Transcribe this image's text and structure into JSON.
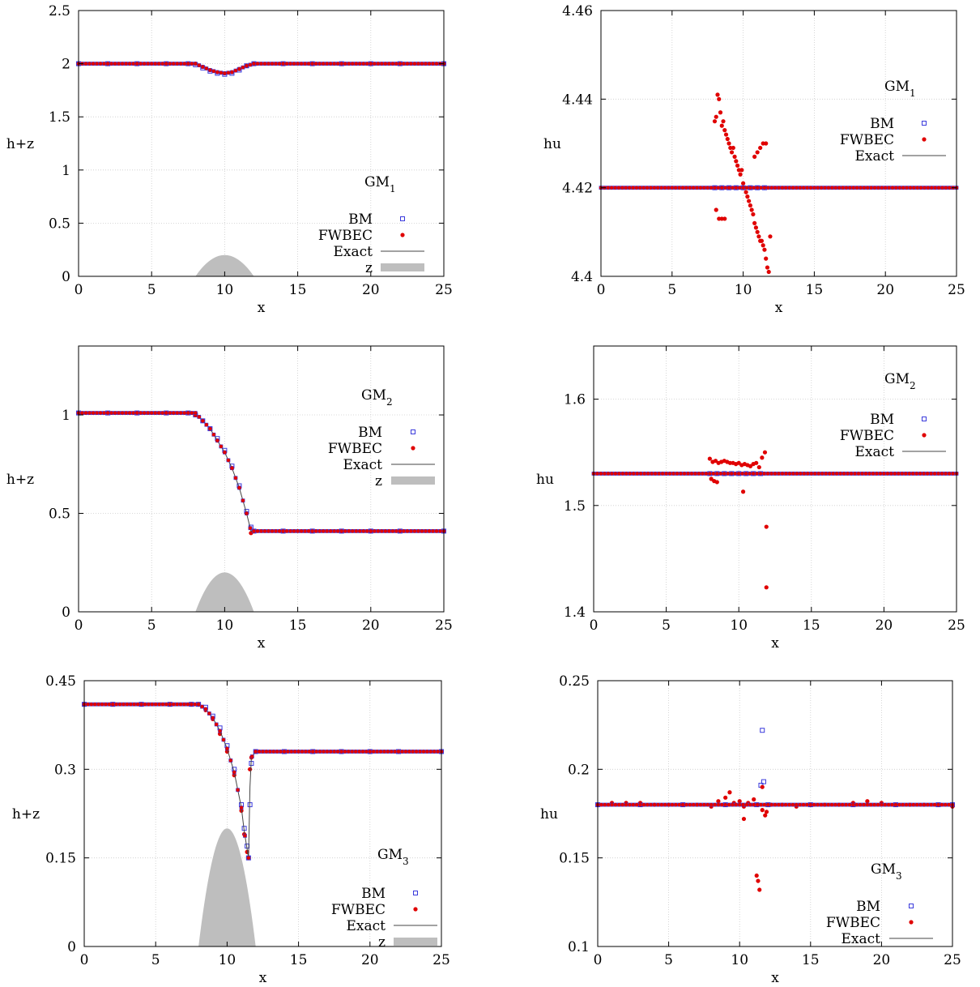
{
  "figure": {
    "background": "#ffffff"
  },
  "colors": {
    "bm": "#3a3adc",
    "fwbec": "#e00000",
    "exact": "#444444",
    "z": "#bebebe",
    "grid": "#cccccc"
  },
  "chart_data": [
    {
      "id": "p1",
      "type": "scatter",
      "title": "GM",
      "title_sub": "1",
      "xlabel": "x",
      "ylabel": "h+z",
      "xlim": [
        0,
        25
      ],
      "ylim": [
        0,
        2.5
      ],
      "xticks": [
        0,
        5,
        10,
        15,
        20,
        25
      ],
      "yticks": [
        0,
        0.5,
        1,
        1.5,
        2,
        2.5
      ],
      "ytick_labels": [
        "0",
        "0.5",
        "1",
        "1.5",
        "2",
        "2.5"
      ],
      "grid": true,
      "legend": [
        "BM",
        "FWBEC",
        "Exact",
        "z"
      ],
      "legend_position": "right",
      "series": [
        {
          "name": "BM",
          "marker": "open-square",
          "x": [
            0,
            2,
            4,
            6,
            7.5,
            8,
            8.5,
            9,
            9.5,
            10,
            10.5,
            11,
            11.5,
            12,
            14,
            16,
            18,
            20,
            22,
            25
          ],
          "y": [
            2.0,
            2.0,
            2.0,
            2.0,
            2.0,
            1.99,
            1.96,
            1.93,
            1.91,
            1.9,
            1.91,
            1.94,
            1.98,
            2.0,
            2.0,
            2.0,
            2.0,
            2.0,
            2.0,
            2.0
          ]
        },
        {
          "name": "FWBEC",
          "marker": "dot",
          "x": [
            0,
            2,
            4,
            6,
            7.5,
            8,
            8.5,
            9,
            9.5,
            10,
            10.5,
            11,
            11.5,
            12,
            14,
            16,
            18,
            20,
            22,
            25
          ],
          "y": [
            2.0,
            2.0,
            2.0,
            2.0,
            2.0,
            2.0,
            1.97,
            1.94,
            1.92,
            1.91,
            1.92,
            1.95,
            1.98,
            2.0,
            2.0,
            2.0,
            2.0,
            2.0,
            2.0,
            2.0
          ]
        },
        {
          "name": "Exact",
          "marker": "line",
          "x": [
            0,
            8,
            8.5,
            9,
            9.5,
            10,
            10.5,
            11,
            11.5,
            12,
            25
          ],
          "y": [
            2.0,
            2.0,
            1.97,
            1.94,
            1.92,
            1.91,
            1.92,
            1.95,
            1.98,
            2.0,
            2.0
          ]
        }
      ],
      "z": {
        "name": "z",
        "x_range": [
          8,
          12
        ],
        "peak": 0.2,
        "center": 10
      }
    },
    {
      "id": "p2",
      "type": "scatter",
      "title": "GM",
      "title_sub": "1",
      "xlabel": "x",
      "ylabel": "hu",
      "xlim": [
        0,
        25
      ],
      "ylim": [
        4.4,
        4.46
      ],
      "xticks": [
        0,
        5,
        10,
        15,
        20,
        25
      ],
      "yticks": [
        4.4,
        4.42,
        4.44,
        4.46
      ],
      "ytick_labels": [
        "4.4",
        "4.42",
        "4.44",
        "4.46"
      ],
      "grid": true,
      "legend": [
        "BM",
        "FWBEC",
        "Exact"
      ],
      "legend_position": "top-right",
      "series": [
        {
          "name": "BM",
          "marker": "open-square",
          "x": [
            8.0,
            8.5,
            9.0,
            9.5,
            10.0,
            10.5,
            11.0,
            11.5
          ],
          "y": [
            4.42,
            4.42,
            4.42,
            4.42,
            4.42,
            4.42,
            4.42,
            4.42
          ]
        },
        {
          "name": "FWBEC",
          "marker": "dot",
          "x": [
            8.0,
            8.1,
            8.2,
            8.3,
            8.4,
            8.5,
            8.6,
            8.7,
            8.8,
            8.9,
            9.0,
            9.1,
            9.2,
            9.3,
            9.4,
            9.5,
            9.6,
            9.7,
            9.8,
            9.9,
            10.0,
            10.1,
            10.2,
            10.3,
            10.4,
            10.5,
            10.6,
            10.7,
            10.8,
            10.9,
            11.0,
            11.1,
            11.2,
            11.3,
            11.4,
            11.5,
            11.6,
            11.7,
            11.8,
            11.9,
            8.1,
            8.3,
            8.5,
            8.7,
            10.8,
            11.0,
            11.2,
            11.4,
            11.6
          ],
          "y": [
            4.435,
            4.436,
            4.441,
            4.44,
            4.437,
            4.434,
            4.435,
            4.433,
            4.432,
            4.431,
            4.43,
            4.429,
            4.428,
            4.429,
            4.427,
            4.426,
            4.425,
            4.424,
            4.423,
            4.424,
            4.421,
            4.42,
            4.419,
            4.418,
            4.417,
            4.416,
            4.415,
            4.414,
            4.412,
            4.411,
            4.41,
            4.409,
            4.408,
            4.408,
            4.407,
            4.406,
            4.404,
            4.402,
            4.401,
            4.409,
            4.415,
            4.413,
            4.413,
            4.413,
            4.427,
            4.428,
            4.429,
            4.43,
            4.43
          ]
        },
        {
          "name": "Exact",
          "marker": "line",
          "x": [
            0,
            25
          ],
          "y": [
            4.42,
            4.42
          ]
        }
      ]
    },
    {
      "id": "p3",
      "type": "scatter",
      "title": "GM",
      "title_sub": "2",
      "xlabel": "x",
      "ylabel": "h+z",
      "xlim": [
        0,
        25
      ],
      "ylim": [
        0,
        1.35
      ],
      "xticks": [
        0,
        5,
        10,
        15,
        20,
        25
      ],
      "yticks": [
        0,
        0.5,
        1
      ],
      "ytick_labels": [
        "0",
        "0.5",
        "1"
      ],
      "grid": true,
      "legend": [
        "BM",
        "FWBEC",
        "Exact",
        "z"
      ],
      "legend_position": "top-right",
      "series": [
        {
          "name": "BM",
          "marker": "open-square",
          "x": [
            0,
            2,
            4,
            6,
            7.5,
            8,
            8.5,
            9,
            9.5,
            10,
            10.5,
            11,
            11.5,
            11.8,
            12,
            14,
            16,
            18,
            20,
            22,
            25
          ],
          "y": [
            1.01,
            1.01,
            1.01,
            1.01,
            1.01,
            1.0,
            0.97,
            0.93,
            0.88,
            0.82,
            0.74,
            0.64,
            0.51,
            0.43,
            0.41,
            0.41,
            0.41,
            0.41,
            0.41,
            0.41,
            0.41
          ]
        },
        {
          "name": "FWBEC",
          "marker": "dot",
          "x": [
            0,
            2,
            4,
            6,
            7.5,
            8,
            8.5,
            9,
            9.5,
            10,
            10.5,
            11,
            11.5,
            11.8,
            12,
            14,
            16,
            18,
            20,
            22,
            25
          ],
          "y": [
            1.01,
            1.01,
            1.01,
            1.01,
            1.01,
            1.0,
            0.97,
            0.93,
            0.87,
            0.81,
            0.73,
            0.63,
            0.5,
            0.4,
            0.41,
            0.41,
            0.41,
            0.41,
            0.41,
            0.41,
            0.41
          ]
        },
        {
          "name": "Exact",
          "marker": "line",
          "x": [
            0,
            8,
            8.5,
            9,
            9.5,
            10,
            10.5,
            11,
            11.5,
            11.8,
            25
          ],
          "y": [
            1.01,
            1.01,
            0.97,
            0.93,
            0.87,
            0.81,
            0.73,
            0.63,
            0.5,
            0.41,
            0.41
          ]
        }
      ],
      "z": {
        "name": "z",
        "x_range": [
          8,
          12
        ],
        "peak": 0.2,
        "center": 10
      }
    },
    {
      "id": "p4",
      "type": "scatter",
      "title": "GM",
      "title_sub": "2",
      "xlabel": "x",
      "ylabel": "hu",
      "xlim": [
        0,
        25
      ],
      "ylim": [
        1.4,
        1.65
      ],
      "xticks": [
        0,
        5,
        10,
        15,
        20,
        25
      ],
      "yticks": [
        1.4,
        1.5,
        1.6
      ],
      "ytick_labels": [
        "1.4",
        "1.5",
        "1.6"
      ],
      "grid": true,
      "legend": [
        "BM",
        "FWBEC",
        "Exact"
      ],
      "legend_position": "top-right",
      "series": [
        {
          "name": "BM",
          "marker": "open-square",
          "x": [
            8,
            8.5,
            9,
            9.5,
            10,
            10.5,
            11,
            11.5
          ],
          "y": [
            1.53,
            1.53,
            1.53,
            1.53,
            1.53,
            1.53,
            1.53,
            1.53
          ]
        },
        {
          "name": "FWBEC",
          "marker": "dot",
          "x": [
            8.0,
            8.2,
            8.4,
            8.6,
            8.8,
            9.0,
            9.2,
            9.4,
            9.6,
            9.8,
            10.0,
            10.2,
            10.4,
            10.6,
            10.8,
            11.0,
            11.2,
            11.4,
            11.6,
            11.8,
            8.1,
            8.3,
            8.5,
            10.3,
            11.9,
            11.9
          ],
          "y": [
            1.544,
            1.541,
            1.542,
            1.54,
            1.541,
            1.542,
            1.541,
            1.54,
            1.54,
            1.539,
            1.54,
            1.538,
            1.539,
            1.538,
            1.537,
            1.539,
            1.54,
            1.536,
            1.545,
            1.55,
            1.525,
            1.523,
            1.522,
            1.513,
            1.48,
            1.423
          ]
        },
        {
          "name": "Exact",
          "marker": "line",
          "x": [
            0,
            25
          ],
          "y": [
            1.53,
            1.53
          ]
        }
      ]
    },
    {
      "id": "p5",
      "type": "scatter",
      "title": "GM",
      "title_sub": "3",
      "xlabel": "x",
      "ylabel": "h+z",
      "xlim": [
        0,
        25
      ],
      "ylim": [
        0,
        0.45
      ],
      "xticks": [
        0,
        5,
        10,
        15,
        20,
        25
      ],
      "yticks": [
        0,
        0.15,
        0.3,
        0.45
      ],
      "ytick_labels": [
        "0",
        "0.15",
        "0.3",
        "0.45"
      ],
      "grid": true,
      "legend": [
        "BM",
        "FWBEC",
        "Exact",
        "z"
      ],
      "legend_position": "bottom-right",
      "series": [
        {
          "name": "BM",
          "marker": "open-square",
          "x": [
            0,
            2,
            4,
            6,
            7.5,
            8,
            8.5,
            9,
            9.5,
            10,
            10.5,
            11,
            11.2,
            11.4,
            11.5,
            11.6,
            11.7,
            12,
            14,
            16,
            18,
            20,
            22,
            25
          ],
          "y": [
            0.41,
            0.41,
            0.41,
            0.41,
            0.41,
            0.41,
            0.405,
            0.39,
            0.37,
            0.34,
            0.3,
            0.24,
            0.2,
            0.17,
            0.15,
            0.24,
            0.31,
            0.33,
            0.33,
            0.33,
            0.33,
            0.33,
            0.33,
            0.33
          ]
        },
        {
          "name": "FWBEC",
          "marker": "dot",
          "x": [
            0,
            2,
            4,
            6,
            7.5,
            8,
            8.5,
            9,
            9.5,
            10,
            10.5,
            11,
            11.2,
            11.4,
            11.5,
            11.6,
            11.7,
            12,
            14,
            16,
            18,
            20,
            22,
            25
          ],
          "y": [
            0.41,
            0.41,
            0.41,
            0.41,
            0.41,
            0.41,
            0.4,
            0.385,
            0.36,
            0.33,
            0.29,
            0.23,
            0.19,
            0.16,
            0.15,
            0.3,
            0.32,
            0.33,
            0.33,
            0.33,
            0.33,
            0.33,
            0.33,
            0.33
          ]
        },
        {
          "name": "Exact",
          "marker": "line",
          "x": [
            0,
            8,
            8.5,
            9,
            9.5,
            10,
            10.5,
            11,
            11.2,
            11.4,
            11.5,
            11.6,
            11.7,
            12,
            25
          ],
          "y": [
            0.41,
            0.41,
            0.402,
            0.387,
            0.365,
            0.335,
            0.295,
            0.235,
            0.195,
            0.165,
            0.15,
            0.27,
            0.32,
            0.33,
            0.33
          ]
        }
      ],
      "z": {
        "name": "z",
        "x_range": [
          8,
          12
        ],
        "peak": 0.2,
        "center": 10
      }
    },
    {
      "id": "p6",
      "type": "scatter",
      "title": "GM",
      "title_sub": "3",
      "xlabel": "x",
      "ylabel": "hu",
      "xlim": [
        0,
        25
      ],
      "ylim": [
        0.1,
        0.25
      ],
      "xticks": [
        0,
        5,
        10,
        15,
        20,
        25
      ],
      "yticks": [
        0.1,
        0.15,
        0.2,
        0.25
      ],
      "ytick_labels": [
        "0.1",
        "0.15",
        "0.2",
        "0.25"
      ],
      "grid": true,
      "legend": [
        "BM",
        "FWBEC",
        "Exact"
      ],
      "legend_position": "bottom-right",
      "series": [
        {
          "name": "BM",
          "marker": "open-square",
          "x": [
            0,
            3,
            6,
            9,
            11.2,
            11.5,
            11.6,
            11.7,
            12,
            15,
            18,
            21,
            24,
            25
          ],
          "y": [
            0.18,
            0.18,
            0.18,
            0.18,
            0.18,
            0.191,
            0.222,
            0.193,
            0.18,
            0.18,
            0.18,
            0.18,
            0.18,
            0.18
          ]
        },
        {
          "name": "FWBEC",
          "marker": "dot",
          "x": [
            0,
            1,
            2,
            3,
            4,
            5,
            6,
            7,
            8,
            8.5,
            9,
            9.3,
            9.6,
            10,
            10.3,
            10.6,
            11,
            11.3,
            11.6,
            11.9,
            12.2,
            13,
            14,
            15,
            16,
            17,
            18,
            19,
            20,
            21,
            22,
            23,
            24,
            25,
            11.2,
            11.3,
            11.4,
            11.8,
            10.3,
            11.6
          ],
          "y": [
            0.18,
            0.181,
            0.181,
            0.181,
            0.18,
            0.18,
            0.18,
            0.18,
            0.179,
            0.182,
            0.184,
            0.187,
            0.181,
            0.182,
            0.179,
            0.181,
            0.183,
            0.18,
            0.19,
            0.176,
            0.18,
            0.18,
            0.179,
            0.18,
            0.18,
            0.18,
            0.181,
            0.182,
            0.181,
            0.18,
            0.18,
            0.18,
            0.18,
            0.179,
            0.14,
            0.137,
            0.132,
            0.174,
            0.172,
            0.177
          ]
        },
        {
          "name": "Exact",
          "marker": "line",
          "x": [
            0,
            25
          ],
          "y": [
            0.18,
            0.18
          ]
        }
      ]
    }
  ]
}
